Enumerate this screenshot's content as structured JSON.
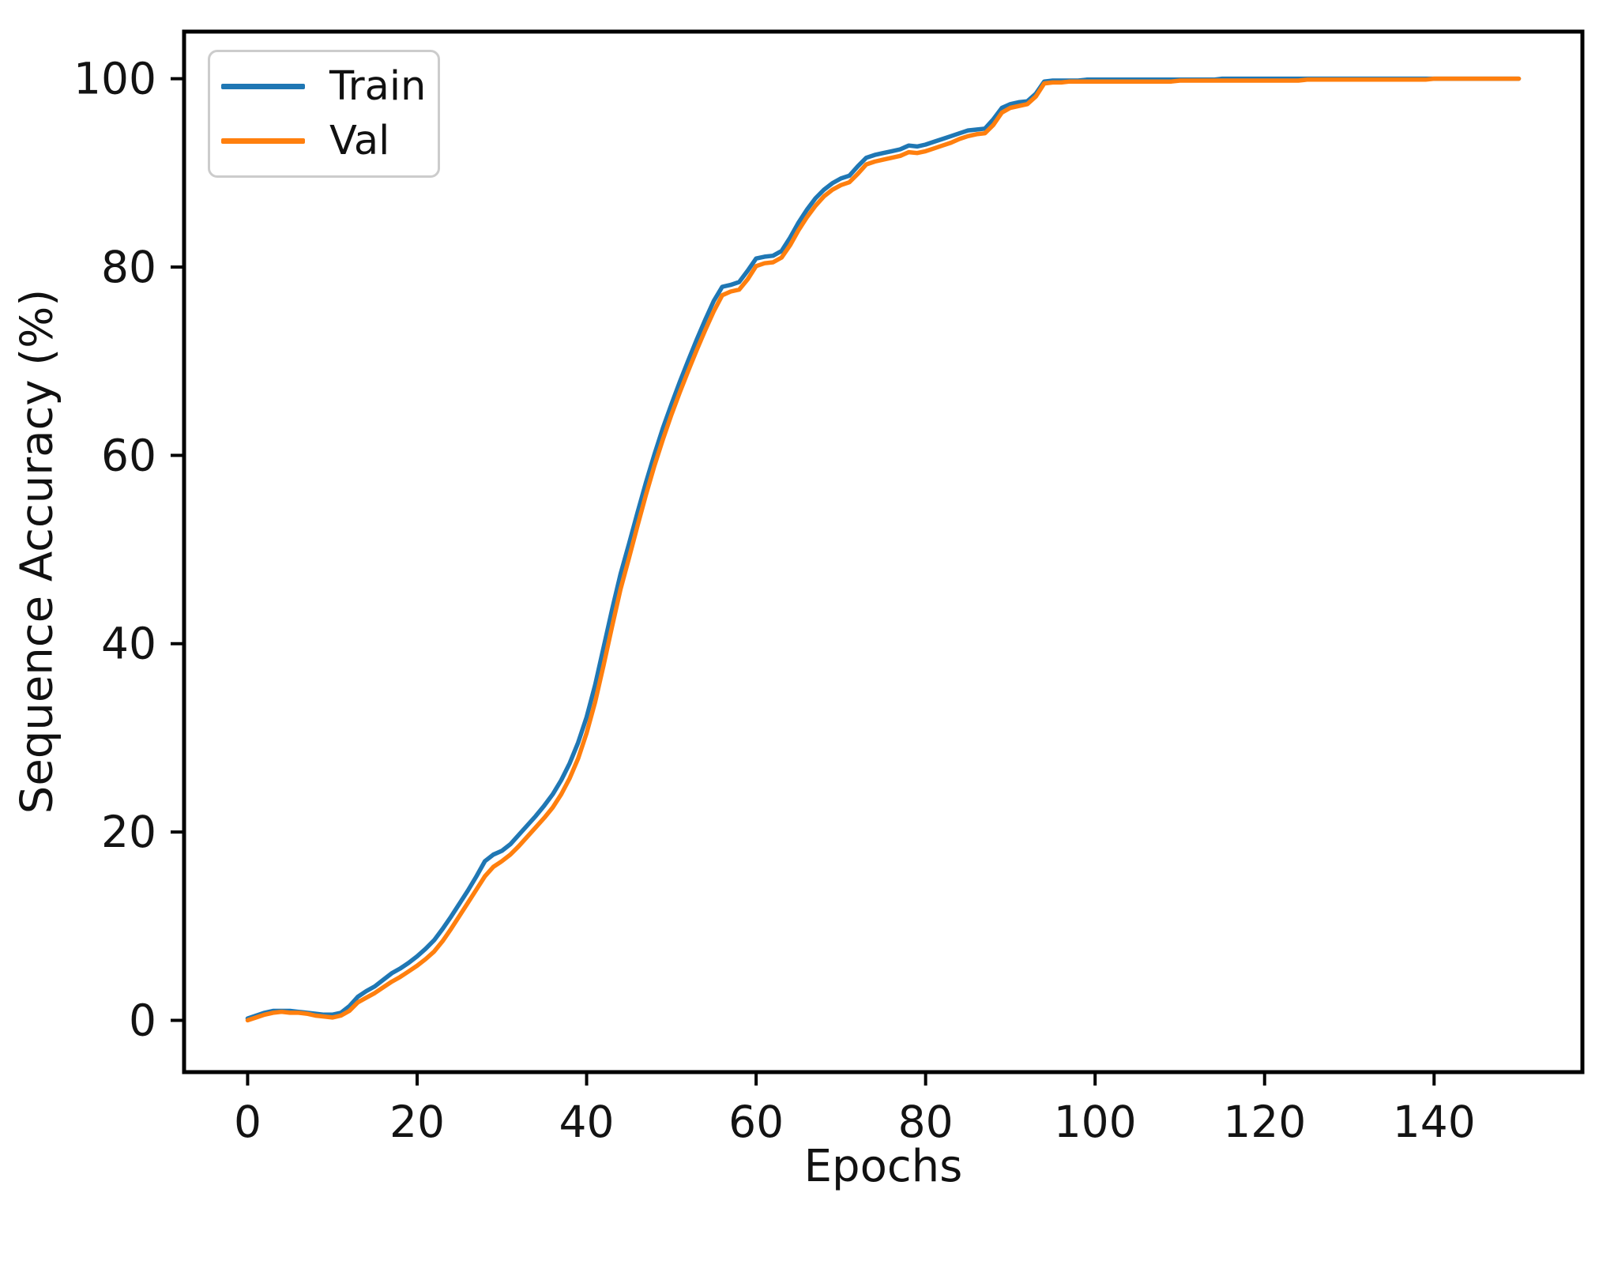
{
  "figure": {
    "background": "#ffffff"
  },
  "chart_data": {
    "type": "line",
    "title": "",
    "xlabel": "Epochs",
    "ylabel": "Sequence Accuracy (%)",
    "xlim": [
      -7.5,
      157.5
    ],
    "ylim": [
      -5.5,
      105
    ],
    "xticks": [
      0,
      20,
      40,
      60,
      80,
      100,
      120,
      140
    ],
    "yticks": [
      0,
      20,
      40,
      60,
      80,
      100
    ],
    "grid": false,
    "legend_position": "upper-left",
    "x": [
      0,
      1,
      2,
      3,
      4,
      5,
      6,
      7,
      8,
      9,
      10,
      11,
      12,
      13,
      14,
      15,
      16,
      17,
      18,
      19,
      20,
      21,
      22,
      23,
      24,
      25,
      26,
      27,
      28,
      29,
      30,
      31,
      32,
      33,
      34,
      35,
      36,
      37,
      38,
      39,
      40,
      41,
      42,
      43,
      44,
      45,
      46,
      47,
      48,
      49,
      50,
      51,
      52,
      53,
      54,
      55,
      56,
      57,
      58,
      59,
      60,
      61,
      62,
      63,
      64,
      65,
      66,
      67,
      68,
      69,
      70,
      71,
      72,
      73,
      74,
      75,
      76,
      77,
      78,
      79,
      80,
      81,
      82,
      83,
      84,
      85,
      86,
      87,
      88,
      89,
      90,
      91,
      92,
      93,
      94,
      95,
      96,
      97,
      98,
      99,
      100,
      101,
      102,
      103,
      104,
      105,
      106,
      107,
      108,
      109,
      110,
      111,
      112,
      113,
      114,
      115,
      116,
      117,
      118,
      119,
      120,
      121,
      122,
      123,
      124,
      125,
      126,
      127,
      128,
      129,
      130,
      131,
      132,
      133,
      134,
      135,
      136,
      137,
      138,
      139,
      140,
      141,
      142,
      143,
      144,
      145,
      146,
      147,
      148,
      149,
      150
    ],
    "series": [
      {
        "name": "Train",
        "color": "#1f77b4",
        "values": [
          0.2,
          0.5,
          0.8,
          1.0,
          1.0,
          1.0,
          0.9,
          0.8,
          0.7,
          0.6,
          0.6,
          0.8,
          1.5,
          2.5,
          3.1,
          3.6,
          4.3,
          5.0,
          5.5,
          6.1,
          6.8,
          7.6,
          8.5,
          9.7,
          11.0,
          12.4,
          13.8,
          15.3,
          16.9,
          17.6,
          18.0,
          18.7,
          19.7,
          20.7,
          21.7,
          22.8,
          24.0,
          25.5,
          27.3,
          29.5,
          32.2,
          35.6,
          39.6,
          43.6,
          47.4,
          50.6,
          53.9,
          57.1,
          60.1,
          62.9,
          65.4,
          67.8,
          70.1,
          72.3,
          74.4,
          76.4,
          77.9,
          78.1,
          78.4,
          79.6,
          80.9,
          81.1,
          81.2,
          81.7,
          83.1,
          84.7,
          86.1,
          87.3,
          88.2,
          88.9,
          89.4,
          89.7,
          90.7,
          91.6,
          91.9,
          92.1,
          92.3,
          92.5,
          92.9,
          92.8,
          93.0,
          93.3,
          93.6,
          93.9,
          94.2,
          94.5,
          94.6,
          94.7,
          95.7,
          96.9,
          97.3,
          97.5,
          97.6,
          98.4,
          99.7,
          99.8,
          99.8,
          99.8,
          99.8,
          99.9,
          99.9,
          99.9,
          99.9,
          99.9,
          99.9,
          99.9,
          99.9,
          99.9,
          99.9,
          99.9,
          99.9,
          99.9,
          99.9,
          99.9,
          99.9,
          100.0,
          100.0,
          100.0,
          100.0,
          100.0,
          100.0,
          100.0,
          100.0,
          100.0,
          100.0,
          100.0,
          100.0,
          100.0,
          100.0,
          100.0,
          100.0,
          100.0,
          100.0,
          100.0,
          100.0,
          100.0,
          100.0,
          100.0,
          100.0,
          100.0,
          100.0,
          100.0,
          100.0,
          100.0,
          100.0,
          100.0,
          100.0,
          100.0,
          100.0,
          100.0,
          100.0
        ]
      },
      {
        "name": "Val",
        "color": "#ff7f0e",
        "values": [
          0.0,
          0.3,
          0.6,
          0.8,
          0.9,
          0.8,
          0.8,
          0.7,
          0.5,
          0.4,
          0.3,
          0.5,
          1.0,
          1.9,
          2.4,
          2.9,
          3.5,
          4.1,
          4.6,
          5.2,
          5.8,
          6.5,
          7.3,
          8.4,
          9.7,
          11.1,
          12.5,
          13.9,
          15.3,
          16.3,
          16.9,
          17.6,
          18.5,
          19.5,
          20.5,
          21.5,
          22.6,
          24.0,
          25.7,
          27.8,
          30.5,
          33.8,
          37.7,
          41.8,
          45.8,
          49.1,
          52.5,
          55.8,
          58.9,
          61.7,
          64.3,
          66.7,
          69.0,
          71.2,
          73.3,
          75.3,
          77.0,
          77.4,
          77.6,
          78.7,
          80.1,
          80.4,
          80.5,
          81.0,
          82.3,
          83.9,
          85.3,
          86.5,
          87.5,
          88.2,
          88.7,
          89.0,
          89.9,
          90.9,
          91.2,
          91.4,
          91.6,
          91.8,
          92.2,
          92.1,
          92.3,
          92.6,
          92.9,
          93.2,
          93.6,
          93.9,
          94.1,
          94.2,
          95.1,
          96.4,
          96.9,
          97.1,
          97.3,
          98.1,
          99.5,
          99.6,
          99.6,
          99.7,
          99.7,
          99.7,
          99.7,
          99.7,
          99.7,
          99.7,
          99.7,
          99.7,
          99.7,
          99.7,
          99.7,
          99.7,
          99.8,
          99.8,
          99.8,
          99.8,
          99.8,
          99.8,
          99.8,
          99.8,
          99.8,
          99.8,
          99.8,
          99.8,
          99.8,
          99.8,
          99.8,
          99.9,
          99.9,
          99.9,
          99.9,
          99.9,
          99.9,
          99.9,
          99.9,
          99.9,
          99.9,
          99.9,
          99.9,
          99.9,
          99.9,
          99.9,
          100.0,
          100.0,
          100.0,
          100.0,
          100.0,
          100.0,
          100.0,
          100.0,
          100.0,
          100.0,
          100.0
        ]
      }
    ]
  }
}
